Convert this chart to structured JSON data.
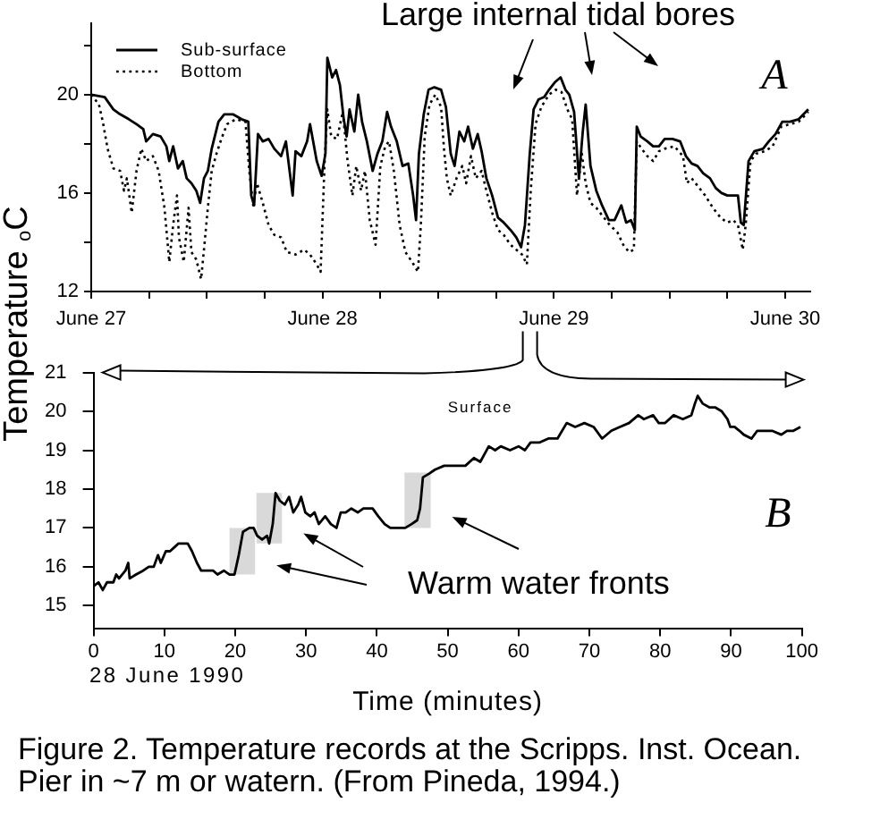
{
  "chart_data": [
    {
      "type": "line",
      "ylabel": "Temperature $_{o}$C",
      "annotations": [
        "Large internal tidal bores",
        "A"
      ],
      "legend": "top left",
      "xlim": [
        "1990-06-27T00:00",
        "1990-06-30T02:36"
      ],
      "xticks": [
        {
          "value": "1990-06-27",
          "label": "June 27"
        },
        {
          "value": "1990-06-27T06:00",
          "label": null
        },
        {
          "value": "1990-06-27T12:00",
          "label": null
        },
        {
          "value": "1990-06-27T18:00",
          "label": null
        },
        {
          "value": "1990-06-28",
          "label": "June 28"
        },
        {
          "value": "1990-06-28T06:00",
          "label": null
        },
        {
          "value": "1990-06-28T12:00",
          "label": null
        },
        {
          "value": "1990-06-28T18:00",
          "label": null
        },
        {
          "value": "1990-06-29",
          "label": "June 29"
        },
        {
          "value": "1990-06-29T06:00",
          "label": null
        },
        {
          "value": "1990-06-29T12:00",
          "label": null
        },
        {
          "value": "1990-06-29T18:00",
          "label": null
        },
        {
          "value": "1990-06-30",
          "label": "June 30"
        }
      ],
      "ylim": [
        12,
        22.9
      ],
      "yticks": [
        12,
        {
          "value": 14,
          "label": null
        },
        16,
        {
          "value": 18,
          "label": null
        },
        20,
        {
          "value": 22,
          "label": null
        }
      ],
      "series": [
        {
          "name": "Sub-surface",
          "color": "#000000",
          "line_style": "solid",
          "x": [
            "1990-06-27T00:00",
            "1990-06-27T01:24",
            "1990-06-27T02:18",
            "1990-06-27T03:00",
            "1990-06-27T03:54",
            "1990-06-27T04:42",
            "1990-06-27T05:24",
            "1990-06-27T05:42",
            "1990-06-27T06:24",
            "1990-06-27T07:12",
            "1990-06-27T07:48",
            "1990-06-27T08:06",
            "1990-06-27T08:30",
            "1990-06-27T09:00",
            "1990-06-27T09:30",
            "1990-06-27T09:54",
            "1990-06-27T10:24",
            "1990-06-27T10:54",
            "1990-06-27T11:18",
            "1990-06-27T11:42",
            "1990-06-27T12:06",
            "1990-06-27T12:30",
            "1990-06-27T13:12",
            "1990-06-27T13:48",
            "1990-06-27T14:42",
            "1990-06-27T15:36",
            "1990-06-27T16:18",
            "1990-06-27T16:36",
            "1990-06-27T16:54",
            "1990-06-27T17:18",
            "1990-06-27T17:48",
            "1990-06-27T18:24",
            "1990-06-27T19:00",
            "1990-06-27T19:42",
            "1990-06-27T20:12",
            "1990-06-27T20:54",
            "1990-06-27T21:12",
            "1990-06-27T21:48",
            "1990-06-27T22:24",
            "1990-06-27T22:42",
            "1990-06-27T23:24",
            "1990-06-27T23:54",
            "1990-06-28T00:18",
            "1990-06-28T00:30",
            "1990-06-28T01:00",
            "1990-06-28T01:24",
            "1990-06-28T01:48",
            "1990-06-28T02:12",
            "1990-06-28T02:30",
            "1990-06-28T02:48",
            "1990-06-28T03:18",
            "1990-06-28T03:42",
            "1990-06-28T04:06",
            "1990-06-28T04:36",
            "1990-06-28T05:12",
            "1990-06-28T05:42",
            "1990-06-28T06:12",
            "1990-06-28T06:42",
            "1990-06-28T07:06",
            "1990-06-28T07:42",
            "1990-06-28T08:18",
            "1990-06-28T08:54",
            "1990-06-28T09:24",
            "1990-06-28T09:42",
            "1990-06-28T10:00",
            "1990-06-28T10:30",
            "1990-06-28T11:00",
            "1990-06-28T11:36",
            "1990-06-28T12:18",
            "1990-06-28T12:48",
            "1990-06-28T13:18",
            "1990-06-28T13:42",
            "1990-06-28T14:12",
            "1990-06-28T14:42",
            "1990-06-28T15:06",
            "1990-06-28T15:36",
            "1990-06-28T16:06",
            "1990-06-28T16:30",
            "1990-06-28T17:00",
            "1990-06-28T17:36",
            "1990-06-28T18:12",
            "1990-06-28T18:48",
            "1990-06-28T19:30",
            "1990-06-28T20:06",
            "1990-06-28T20:36",
            "1990-06-28T21:00",
            "1990-06-28T21:30",
            "1990-06-28T21:54",
            "1990-06-28T22:24",
            "1990-06-28T23:00",
            "1990-06-28T23:30",
            "1990-06-29T00:06",
            "1990-06-29T00:42",
            "1990-06-29T01:12",
            "1990-06-29T01:36",
            "1990-06-29T02:06",
            "1990-06-29T02:36",
            "1990-06-29T03:00",
            "1990-06-29T03:18",
            "1990-06-29T03:48",
            "1990-06-29T04:24",
            "1990-06-29T05:00",
            "1990-06-29T05:42",
            "1990-06-29T06:18",
            "1990-06-29T07:00",
            "1990-06-29T07:30",
            "1990-06-29T08:00",
            "1990-06-29T08:24",
            "1990-06-29T08:36",
            "1990-06-29T09:00",
            "1990-06-29T09:42",
            "1990-06-29T10:18",
            "1990-06-29T10:54",
            "1990-06-29T11:30",
            "1990-06-29T12:18",
            "1990-06-29T13:06",
            "1990-06-29T13:42",
            "1990-06-29T14:18",
            "1990-06-29T14:54",
            "1990-06-29T15:30",
            "1990-06-29T16:12",
            "1990-06-29T16:48",
            "1990-06-29T17:24",
            "1990-06-29T18:00",
            "1990-06-29T18:36",
            "1990-06-29T19:06",
            "1990-06-29T19:24",
            "1990-06-29T19:42",
            "1990-06-29T20:12",
            "1990-06-29T20:48",
            "1990-06-29T21:42",
            "1990-06-29T22:18",
            "1990-06-29T23:00",
            "1990-06-29T23:42",
            "1990-06-30T00:30",
            "1990-06-30T01:24",
            "1990-06-30T02:24"
          ],
          "values": [
            20.0,
            19.9,
            19.4,
            19.2,
            19.0,
            18.8,
            18.6,
            18.1,
            18.4,
            18.3,
            17.9,
            17.3,
            17.9,
            17.0,
            17.3,
            16.6,
            16.4,
            16.1,
            15.6,
            16.6,
            16.9,
            17.8,
            18.9,
            19.2,
            19.2,
            19.0,
            18.9,
            15.9,
            15.5,
            18.4,
            18.1,
            18.2,
            17.8,
            17.5,
            18.1,
            15.9,
            17.7,
            17.5,
            18.1,
            18.8,
            17.3,
            16.7,
            17.6,
            21.5,
            20.7,
            21.0,
            20.4,
            19.0,
            18.3,
            19.4,
            18.5,
            20.0,
            18.9,
            18.1,
            16.9,
            17.6,
            18.1,
            19.3,
            18.7,
            18.1,
            17.1,
            17.2,
            15.9,
            14.9,
            17.6,
            19.2,
            20.2,
            20.3,
            20.2,
            19.5,
            17.6,
            17.1,
            18.5,
            18.1,
            18.7,
            17.8,
            18.4,
            17.7,
            16.6,
            15.9,
            15.0,
            14.8,
            14.5,
            14.2,
            13.8,
            14.7,
            17.6,
            19.4,
            19.8,
            19.9,
            20.2,
            20.5,
            20.7,
            20.2,
            20.0,
            19.3,
            16.6,
            18.5,
            19.6,
            17.1,
            16.1,
            15.5,
            14.9,
            14.9,
            15.5,
            14.8,
            14.9,
            14.5,
            18.7,
            18.3,
            18.1,
            17.9,
            17.9,
            18.2,
            18.2,
            18.1,
            17.5,
            17.2,
            17.1,
            16.8,
            16.6,
            16.2,
            16.0,
            15.9,
            15.9,
            15.9,
            14.8,
            14.7,
            17.3,
            17.7,
            17.8,
            18.1,
            18.4,
            18.9,
            18.9,
            19.0,
            19.4
          ]
        },
        {
          "name": "Bottom",
          "color": "#000000",
          "line_style": "dotted",
          "x": [
            "1990-06-27T00:00",
            "1990-06-27T00:48",
            "1990-06-27T01:12",
            "1990-06-27T01:42",
            "1990-06-27T02:18",
            "1990-06-27T03:00",
            "1990-06-27T03:24",
            "1990-06-27T03:42",
            "1990-06-27T04:12",
            "1990-06-27T04:42",
            "1990-06-27T05:12",
            "1990-06-27T05:42",
            "1990-06-27T06:24",
            "1990-06-27T07:00",
            "1990-06-27T07:36",
            "1990-06-27T08:06",
            "1990-06-27T08:30",
            "1990-06-27T08:54",
            "1990-06-27T09:06",
            "1990-06-27T09:36",
            "1990-06-27T10:06",
            "1990-06-27T10:24",
            "1990-06-27T10:54",
            "1990-06-27T11:24",
            "1990-06-27T11:42",
            "1990-06-27T12:06",
            "1990-06-27T12:30",
            "1990-06-27T13:00",
            "1990-06-27T13:30",
            "1990-06-27T14:06",
            "1990-06-27T15:00",
            "1990-06-27T16:00",
            "1990-06-27T16:24",
            "1990-06-27T16:48",
            "1990-06-27T17:12",
            "1990-06-27T17:48",
            "1990-06-27T18:24",
            "1990-06-27T19:00",
            "1990-06-27T19:42",
            "1990-06-27T20:18",
            "1990-06-27T21:12",
            "1990-06-27T22:06",
            "1990-06-27T22:42",
            "1990-06-27T23:24",
            "1990-06-27T23:48",
            "1990-06-28T00:12",
            "1990-06-28T00:30",
            "1990-06-28T00:54",
            "1990-06-28T01:30",
            "1990-06-28T02:06",
            "1990-06-28T02:36",
            "1990-06-28T03:06",
            "1990-06-28T03:30",
            "1990-06-28T04:00",
            "1990-06-28T04:24",
            "1990-06-28T04:54",
            "1990-06-28T05:30",
            "1990-06-28T06:00",
            "1990-06-28T06:30",
            "1990-06-28T06:54",
            "1990-06-28T07:24",
            "1990-06-28T08:00",
            "1990-06-28T08:36",
            "1990-06-28T09:18",
            "1990-06-28T09:54",
            "1990-06-28T10:12",
            "1990-06-28T10:36",
            "1990-06-28T11:06",
            "1990-06-28T11:42",
            "1990-06-28T12:18",
            "1990-06-28T12:36",
            "1990-06-28T12:54",
            "1990-06-28T13:18",
            "1990-06-28T13:54",
            "1990-06-28T14:30",
            "1990-06-28T14:54",
            "1990-06-28T15:24",
            "1990-06-28T15:54",
            "1990-06-28T16:30",
            "1990-06-28T17:00",
            "1990-06-28T17:36",
            "1990-06-28T18:12",
            "1990-06-28T18:48",
            "1990-06-28T19:30",
            "1990-06-28T20:06",
            "1990-06-28T20:42",
            "1990-06-28T21:12",
            "1990-06-28T21:36",
            "1990-06-28T22:06",
            "1990-06-28T22:42",
            "1990-06-28T23:30",
            "1990-06-29T00:12",
            "1990-06-29T00:48",
            "1990-06-29T01:24",
            "1990-06-29T01:54",
            "1990-06-29T02:24",
            "1990-06-29T02:54",
            "1990-06-29T03:18",
            "1990-06-29T03:48",
            "1990-06-29T04:24",
            "1990-06-29T05:12",
            "1990-06-29T05:48",
            "1990-06-29T06:36",
            "1990-06-29T07:12",
            "1990-06-29T07:48",
            "1990-06-29T08:18",
            "1990-06-29T08:36",
            "1990-06-29T09:06",
            "1990-06-29T09:42",
            "1990-06-29T10:18",
            "1990-06-29T10:54",
            "1990-06-29T11:30",
            "1990-06-29T12:30",
            "1990-06-29T13:24",
            "1990-06-29T13:48",
            "1990-06-29T14:18",
            "1990-06-29T15:06",
            "1990-06-29T15:42",
            "1990-06-29T16:30",
            "1990-06-29T17:18",
            "1990-06-29T18:00",
            "1990-06-29T18:36",
            "1990-06-29T19:06",
            "1990-06-29T19:36",
            "1990-06-29T19:54",
            "1990-06-29T20:24",
            "1990-06-29T21:00",
            "1990-06-29T21:54",
            "1990-06-29T22:42",
            "1990-06-29T23:36",
            "1990-06-30T00:30",
            "1990-06-30T01:24",
            "1990-06-30T02:24"
          ],
          "values": [
            20.0,
            19.6,
            18.9,
            17.8,
            17.0,
            16.9,
            16.1,
            16.6,
            15.2,
            16.9,
            17.8,
            17.3,
            17.5,
            16.9,
            15.4,
            13.2,
            14.7,
            15.9,
            14.2,
            13.2,
            15.4,
            13.6,
            13.3,
            12.5,
            13.7,
            15.4,
            16.9,
            17.6,
            18.2,
            18.8,
            19.0,
            18.9,
            16.9,
            15.5,
            16.4,
            15.6,
            14.7,
            14.3,
            14.2,
            13.6,
            13.5,
            13.7,
            13.5,
            13.1,
            12.8,
            17.1,
            19.4,
            18.3,
            18.2,
            19.3,
            17.3,
            15.9,
            17.1,
            16.1,
            16.9,
            14.9,
            13.9,
            17.1,
            17.9,
            18.1,
            16.9,
            14.7,
            13.6,
            13.2,
            12.8,
            14.7,
            18.3,
            19.6,
            20.0,
            19.5,
            17.8,
            16.6,
            15.9,
            16.6,
            17.1,
            16.4,
            17.5,
            16.6,
            16.9,
            16.1,
            15.2,
            14.5,
            14.3,
            13.9,
            13.7,
            13.5,
            13.1,
            16.1,
            18.8,
            19.5,
            20.0,
            20.2,
            20.1,
            19.4,
            19.0,
            15.9,
            17.6,
            16.4,
            15.6,
            15.4,
            15.0,
            14.7,
            14.4,
            13.9,
            13.6,
            13.7,
            18.1,
            17.8,
            17.5,
            17.3,
            17.7,
            17.8,
            17.9,
            17.5,
            16.4,
            16.6,
            16.2,
            15.9,
            15.4,
            15.0,
            14.8,
            14.9,
            14.7,
            13.7,
            14.7,
            17.3,
            17.6,
            17.7,
            17.9,
            18.7,
            18.8,
            18.9,
            19.3
          ]
        }
      ]
    },
    {
      "type": "line",
      "xlabel": "Time (minutes)",
      "annotations": [
        "B",
        "Warm water fronts",
        "28 June 1990",
        "Figure 2. Temperature records at the Scripps. Inst. Ocean.\nPier in ~7 m or watern. (From Pineda, 1994.)"
      ],
      "xlim": [
        0,
        100
      ],
      "xticks": [
        0,
        10,
        20,
        30,
        40,
        50,
        60,
        70,
        80,
        90,
        100
      ],
      "ylim": [
        14.4,
        21
      ],
      "yticks": [
        15,
        16,
        17,
        18,
        19,
        20,
        21
      ],
      "bands": [
        {
          "axis": "x",
          "from": 19.2,
          "to": 22.8,
          "color": "#d9d9d9"
        },
        {
          "axis": "x",
          "from": 23.0,
          "to": 26.6,
          "color": "#d9d9d9"
        },
        {
          "axis": "x",
          "from": 43.9,
          "to": 47.6,
          "color": "#d9d9d9"
        }
      ],
      "series": [
        {
          "name": "Surface",
          "color": "#000000",
          "x": [
            0,
            0.7,
            1.3,
            1.9,
            2.8,
            3.2,
            3.6,
            4.5,
            4.9,
            5.1,
            6.0,
            7.0,
            7.8,
            8.5,
            9.1,
            9.5,
            10.2,
            10.8,
            11.4,
            12.0,
            12.7,
            13.3,
            13.9,
            14.6,
            15.2,
            16.1,
            16.9,
            17.5,
            18.4,
            19.2,
            19.9,
            20.5,
            21.1,
            22.0,
            22.6,
            23.1,
            23.8,
            24.5,
            24.8,
            25.3,
            25.7,
            26.3,
            27.0,
            27.6,
            28.2,
            28.9,
            29.3,
            29.9,
            30.6,
            31.2,
            31.8,
            32.7,
            33.5,
            34.3,
            34.9,
            35.6,
            36.4,
            37.3,
            38.1,
            39.4,
            40.2,
            41.1,
            41.9,
            43.0,
            44.0,
            44.9,
            45.7,
            46.1,
            46.5,
            47.4,
            48.2,
            49.5,
            50.8,
            52.5,
            53.7,
            54.6,
            55.8,
            56.7,
            57.5,
            58.8,
            60.0,
            60.9,
            61.7,
            63.0,
            64.2,
            65.5,
            66.8,
            68.0,
            69.3,
            70.6,
            71.8,
            73.1,
            74.3,
            75.6,
            76.9,
            77.7,
            79.0,
            79.8,
            80.7,
            81.9,
            83.2,
            84.4,
            84.9,
            85.3,
            86.0,
            87.0,
            87.8,
            88.7,
            89.5,
            89.9,
            90.5,
            91.2,
            91.8,
            92.9,
            93.7,
            94.5,
            95.8,
            97.1,
            97.9,
            98.8,
            99.8
          ],
          "values": [
            15.5,
            15.6,
            15.4,
            15.6,
            15.6,
            15.8,
            15.7,
            15.9,
            16.1,
            15.7,
            15.8,
            15.9,
            16.0,
            16.0,
            16.3,
            16.1,
            16.4,
            16.4,
            16.5,
            16.6,
            16.6,
            16.6,
            16.4,
            16.1,
            15.9,
            15.9,
            15.9,
            15.8,
            15.9,
            15.8,
            15.8,
            16.3,
            16.9,
            17.0,
            17.0,
            16.8,
            16.7,
            16.8,
            16.6,
            17.1,
            17.9,
            17.7,
            17.6,
            17.8,
            17.4,
            17.6,
            17.8,
            17.4,
            17.3,
            17.4,
            17.1,
            17.3,
            17.1,
            17.0,
            17.4,
            17.4,
            17.5,
            17.4,
            17.5,
            17.5,
            17.3,
            17.1,
            17.0,
            17.0,
            17.0,
            17.1,
            17.2,
            17.5,
            18.3,
            18.4,
            18.5,
            18.6,
            18.6,
            18.6,
            18.8,
            18.7,
            19.1,
            19.0,
            19.1,
            19.0,
            19.1,
            19.0,
            19.2,
            19.2,
            19.3,
            19.3,
            19.7,
            19.6,
            19.7,
            19.6,
            19.3,
            19.5,
            19.6,
            19.7,
            19.9,
            19.8,
            19.9,
            19.7,
            19.7,
            19.9,
            19.8,
            19.9,
            20.2,
            20.4,
            20.2,
            20.1,
            20.1,
            20.0,
            19.8,
            19.6,
            19.6,
            19.5,
            19.4,
            19.3,
            19.5,
            19.5,
            19.5,
            19.4,
            19.5,
            19.5,
            19.6
          ]
        }
      ]
    }
  ]
}
